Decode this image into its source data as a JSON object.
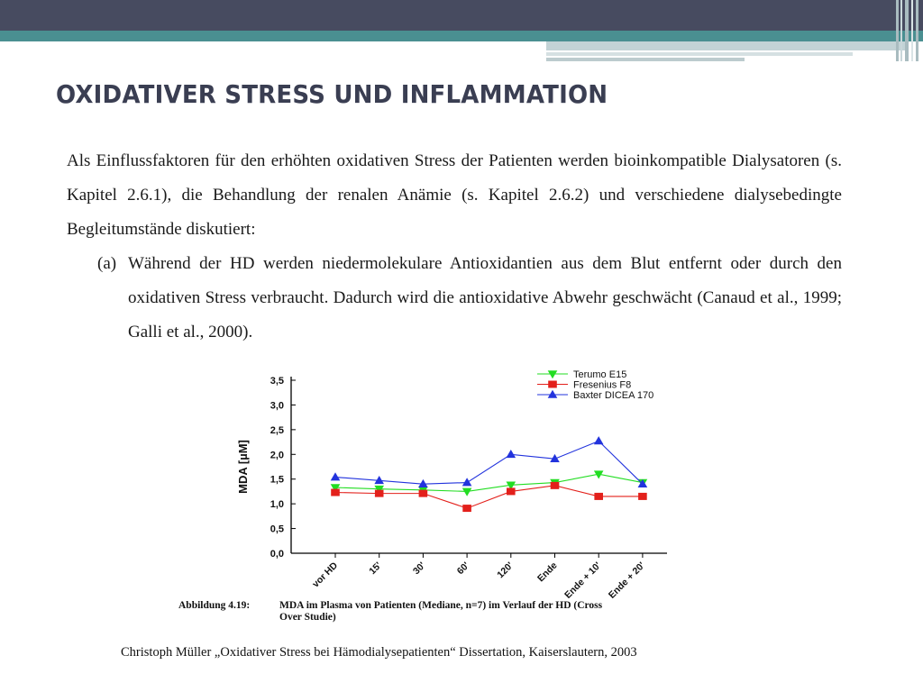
{
  "slide": {
    "title": "OXIDATIVER STRESS UND INFLAMMATION",
    "paragraph": "Als Einflussfaktoren für den erhöhten oxidativen Stress der Patienten werden bioinkompatible Dialysatoren (s. Kapitel 2.6.1), die Behandlung der renalen Anämie (s. Kapitel 2.6.2) und verschiedene dialysebedingte Begleitumstände diskutiert:",
    "item_marker": "(a)",
    "item_text": "Während der HD werden niedermolekulare Antioxidantien aus dem Blut entfernt oder durch den oxidativen Stress verbraucht. Dadurch wird die antioxidative Abwehr geschwächt (Canaud et al., 1999; Galli et al., 2000).",
    "caption_label": "Abbildung 4.19:",
    "caption_text_line1": "MDA im Plasma von Patienten (Mediane, n=7) im Verlauf der HD (Cross",
    "caption_text_line2": "Over Studie)",
    "source": "Christoph Müller „Oxidativer Stress bei Hämodialysepatienten“ Dissertation, Kaiserslautern, 2003"
  },
  "chart_data": {
    "type": "line",
    "xlabel": "",
    "ylabel": "MDA [µM]",
    "categories": [
      "vor HD",
      "15'",
      "30'",
      "60'",
      "120'",
      "Ende",
      "Ende + 10'",
      "Ende + 20'"
    ],
    "y_ticks": [
      "0,0",
      "0,5",
      "1,0",
      "1,5",
      "2,0",
      "2,5",
      "3,0",
      "3,5"
    ],
    "ylim": [
      0,
      3.5
    ],
    "grid": false,
    "legend_position": "top-right",
    "series": [
      {
        "name": "Terumo E15",
        "marker": "triangle-down",
        "color": "#22dd22",
        "values": [
          1.33,
          1.3,
          1.28,
          1.25,
          1.38,
          1.43,
          1.6,
          1.43
        ]
      },
      {
        "name": "Fresenius F8",
        "marker": "square",
        "color": "#e3201b",
        "values": [
          1.23,
          1.21,
          1.21,
          0.91,
          1.25,
          1.37,
          1.15,
          1.15
        ]
      },
      {
        "name": "Baxter DICEA 170",
        "marker": "triangle-up",
        "color": "#2233dd",
        "values": [
          1.54,
          1.47,
          1.4,
          1.43,
          2.0,
          1.91,
          2.27,
          1.4
        ]
      }
    ]
  }
}
